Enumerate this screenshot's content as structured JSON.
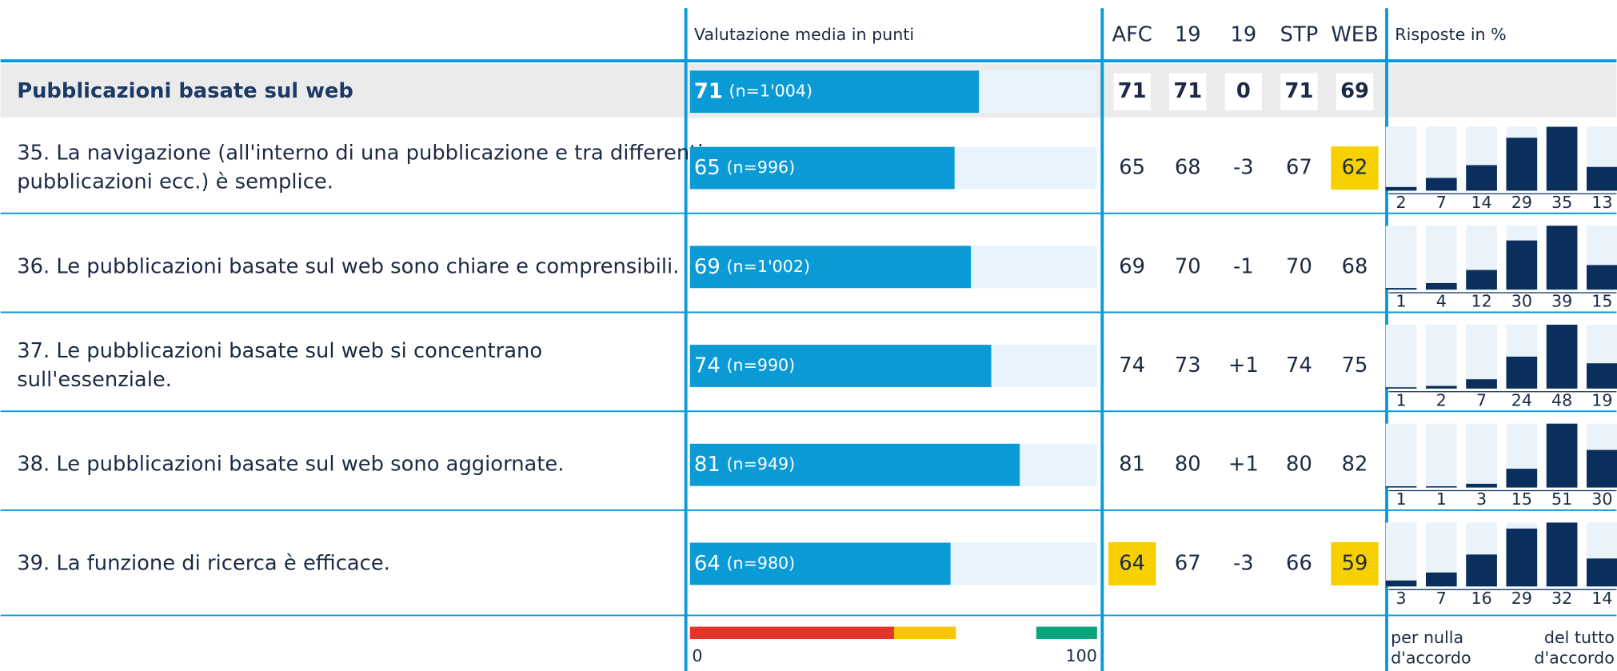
{
  "header": {
    "score_title": "Valutazione media in punti",
    "columns": [
      "AFC",
      "19",
      "19",
      "STP",
      "WEB"
    ],
    "dist_title": "Risposte in %"
  },
  "summary": {
    "label": "Pubblicazioni basate sul web",
    "score": 71,
    "n": "(n=1'004)",
    "values": [
      "71",
      "71",
      "0",
      "71",
      "69"
    ]
  },
  "rows": [
    {
      "label": [
        "35. La navigazione (all'interno di una pubblicazione e tra differenti",
        "pubblicazioni ecc.) è semplice."
      ],
      "score": 65,
      "n": "(n=996)",
      "values": [
        "65",
        "68",
        "-3",
        "67",
        "62"
      ],
      "highlight": [
        4
      ],
      "dist": [
        2,
        7,
        14,
        29,
        35,
        13
      ]
    },
    {
      "label": [
        "36. Le pubblicazioni basate sul web sono chiare e comprensibili."
      ],
      "score": 69,
      "n": "(n=1'002)",
      "values": [
        "69",
        "70",
        "-1",
        "70",
        "68"
      ],
      "highlight": [],
      "dist": [
        1,
        4,
        12,
        30,
        39,
        15
      ]
    },
    {
      "label": [
        "37. Le pubblicazioni basate sul web si concentrano",
        "sull'essenziale."
      ],
      "score": 74,
      "n": "(n=990)",
      "values": [
        "74",
        "73",
        "+1",
        "74",
        "75"
      ],
      "highlight": [],
      "dist": [
        1,
        2,
        7,
        24,
        48,
        19
      ]
    },
    {
      "label": [
        "38. Le pubblicazioni basate sul web sono aggiornate."
      ],
      "score": 81,
      "n": "(n=949)",
      "values": [
        "81",
        "80",
        "+1",
        "80",
        "82"
      ],
      "highlight": [],
      "dist": [
        1,
        1,
        3,
        15,
        51,
        30
      ]
    },
    {
      "label": [
        "39. La funzione di ricerca è efficace."
      ],
      "score": 64,
      "n": "(n=980)",
      "values": [
        "64",
        "67",
        "-3",
        "66",
        "59"
      ],
      "highlight": [
        0,
        4
      ],
      "dist": [
        3,
        7,
        16,
        29,
        32,
        14
      ]
    }
  ],
  "footer": {
    "scale_min": "0",
    "scale_max": "100",
    "left": [
      "per nulla",
      "d'accordo"
    ],
    "right": [
      "del tutto",
      "d'accordo"
    ]
  }
}
